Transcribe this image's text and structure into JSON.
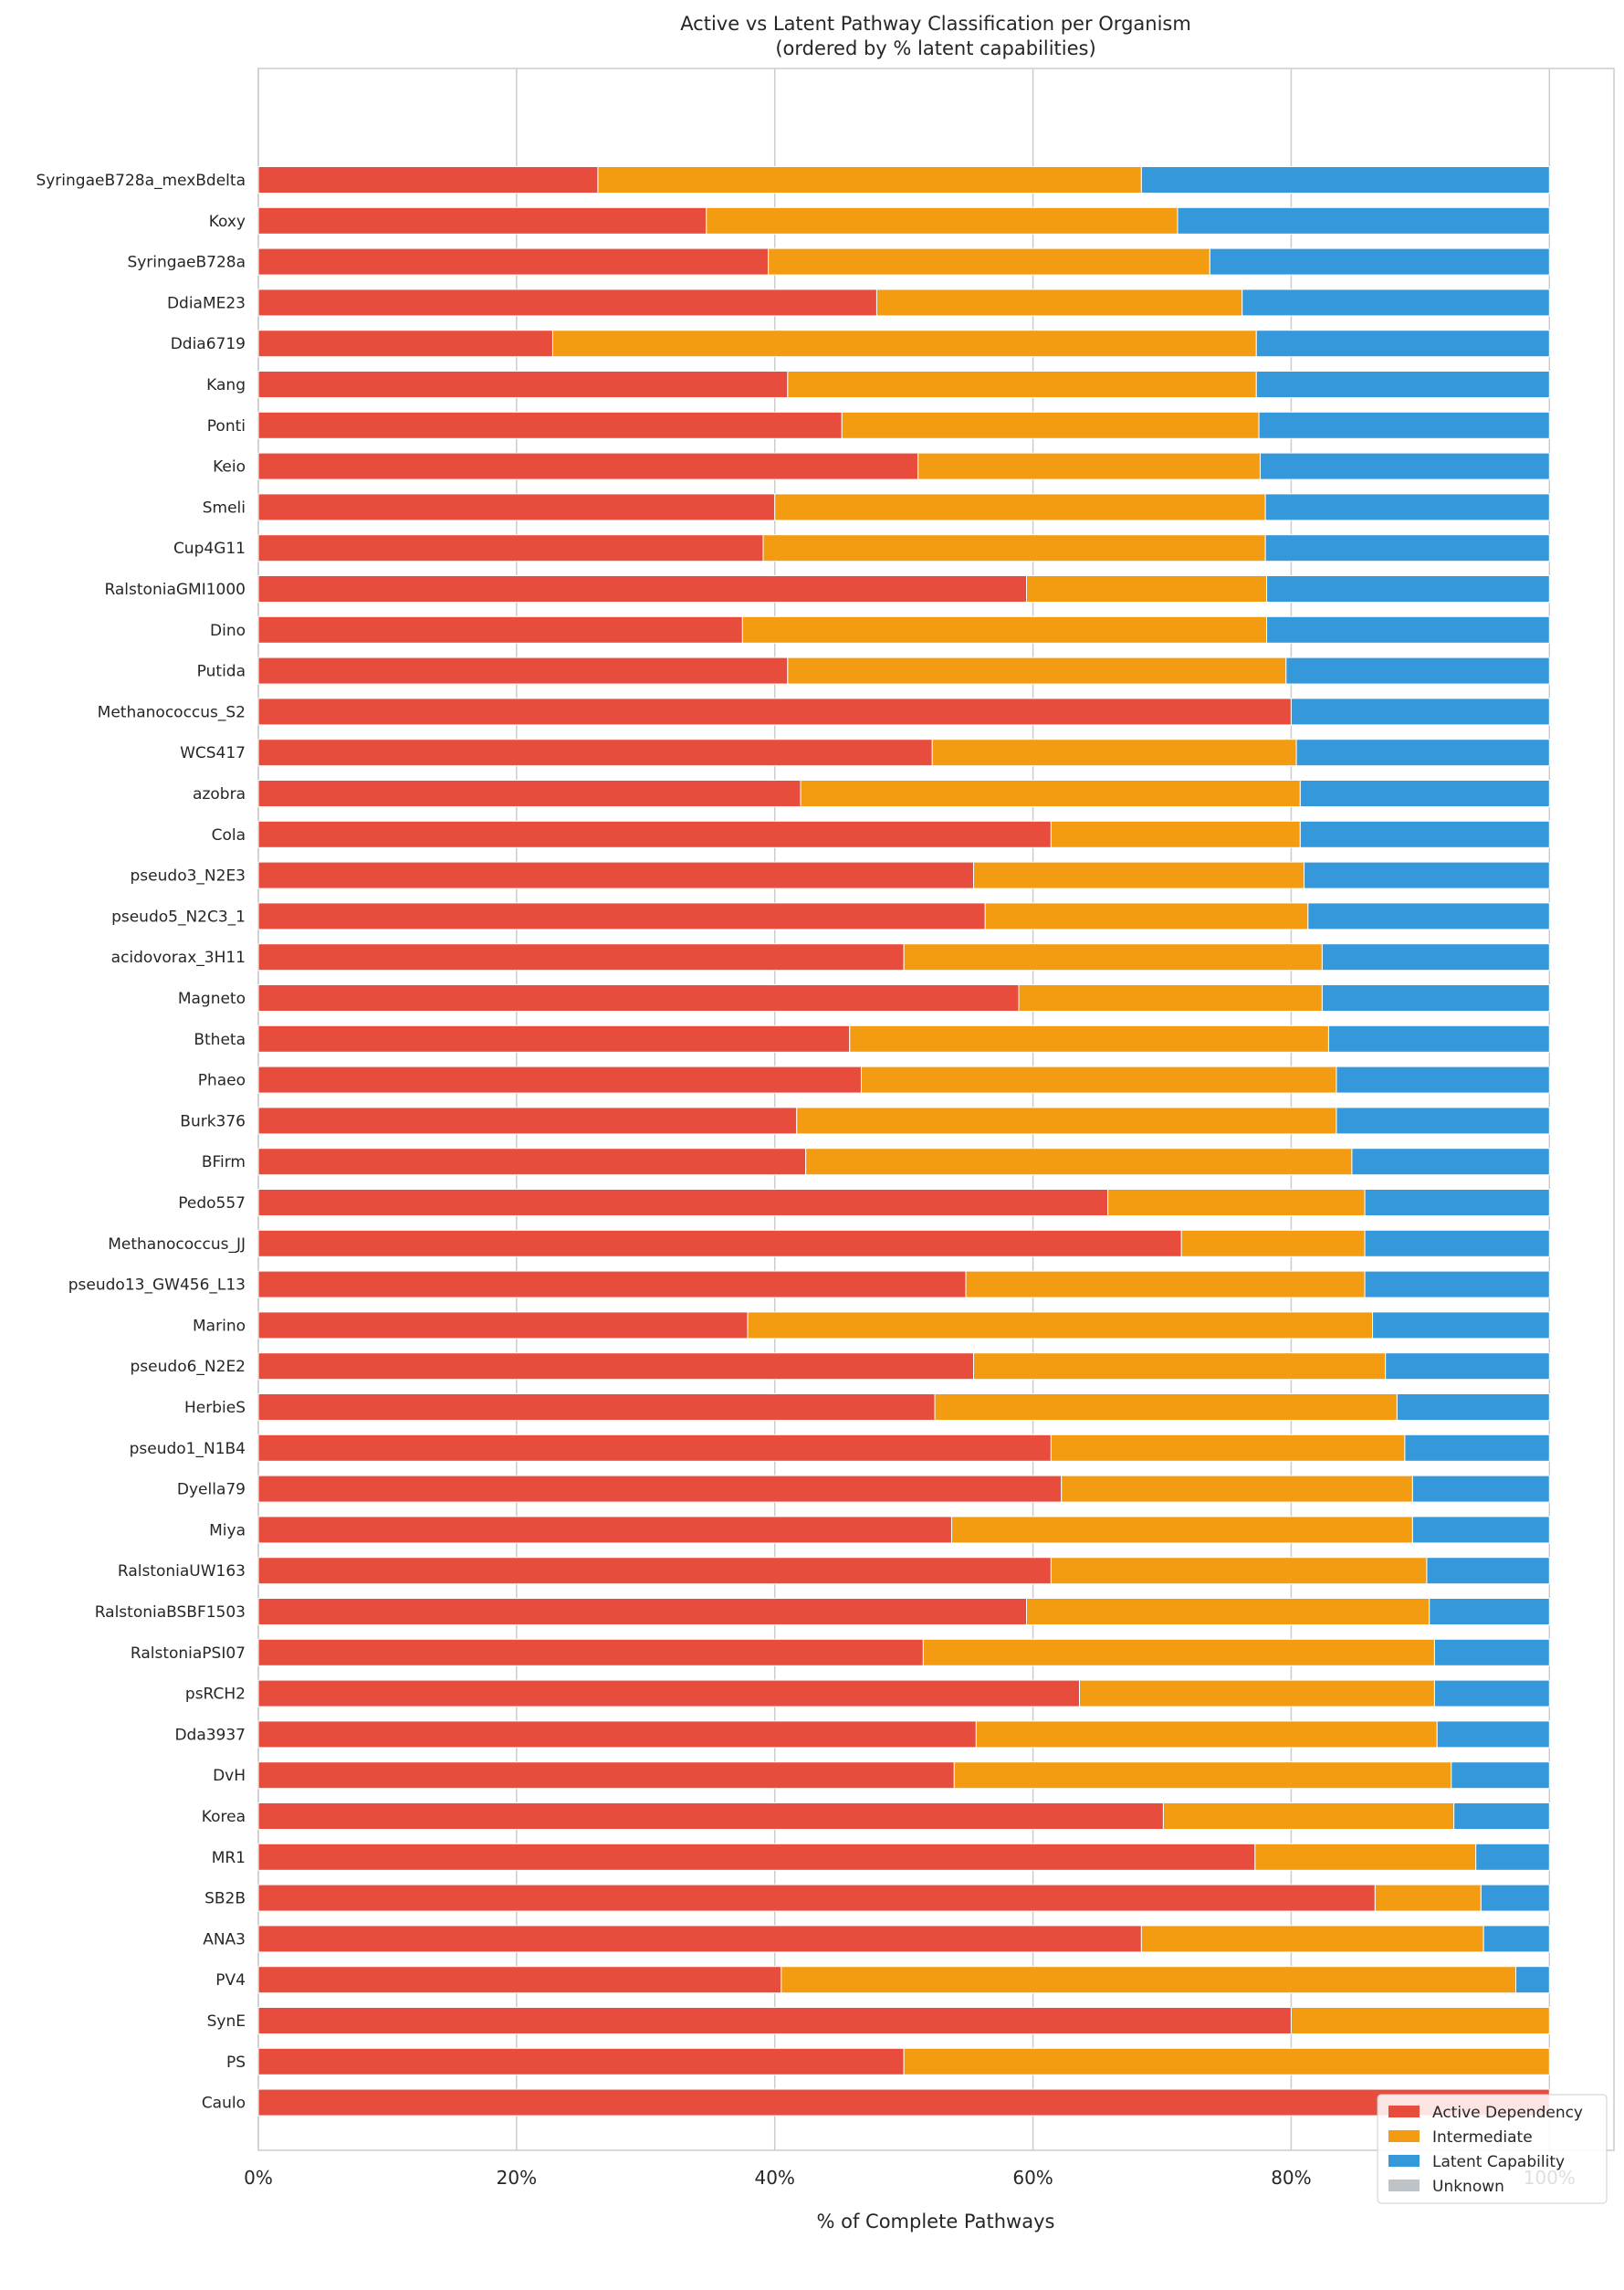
{
  "chart_data": {
    "type": "bar",
    "orientation": "horizontal",
    "stacked": true,
    "title": "Active vs Latent Pathway Classification per Organism",
    "subtitle": "(ordered by % latent capabilities)",
    "xlabel": "% of Complete Pathways",
    "ylabel": "",
    "xlim": [
      0,
      105
    ],
    "xticks": [
      0,
      20,
      40,
      60,
      80,
      100
    ],
    "xtick_labels": [
      "0%",
      "20%",
      "40%",
      "60%",
      "80%",
      "100%"
    ],
    "grid": "vertical",
    "legend_position": "bottom-right",
    "categories": [
      "SyringaeB728a_mexBdelta",
      "Koxy",
      "SyringaeB728a",
      "DdiaME23",
      "Ddia6719",
      "Kang",
      "Ponti",
      "Keio",
      "Smeli",
      "Cup4G11",
      "RalstoniaGMI1000",
      "Dino",
      "Putida",
      "Methanococcus_S2",
      "WCS417",
      "azobra",
      "Cola",
      "pseudo3_N2E3",
      "pseudo5_N2C3_1",
      "acidovorax_3H11",
      "Magneto",
      "Btheta",
      "Phaeo",
      "Burk376",
      "BFirm",
      "Pedo557",
      "Methanococcus_JJ",
      "pseudo13_GW456_L13",
      "Marino",
      "pseudo6_N2E2",
      "HerbieS",
      "pseudo1_N1B4",
      "Dyella79",
      "Miya",
      "RalstoniaUW163",
      "RalstoniaBSBF1503",
      "RalstoniaPSI07",
      "psRCH2",
      "Dda3937",
      "DvH",
      "Korea",
      "MR1",
      "SB2B",
      "ANA3",
      "PV4",
      "SynE",
      "PS",
      "Caulo"
    ],
    "series": [
      {
        "name": "Active Dependency",
        "color": "#e74c3c",
        "values": [
          26.3,
          34.7,
          39.5,
          47.9,
          22.8,
          41.0,
          45.2,
          51.1,
          40.0,
          39.1,
          59.5,
          37.5,
          41.0,
          80.0,
          52.2,
          42.0,
          61.4,
          55.4,
          56.3,
          50.0,
          58.9,
          45.8,
          46.7,
          41.7,
          42.4,
          65.8,
          71.5,
          54.8,
          37.9,
          55.4,
          52.4,
          61.4,
          62.2,
          53.7,
          61.4,
          59.5,
          51.5,
          63.6,
          55.6,
          53.9,
          70.1,
          77.2,
          86.5,
          68.4,
          40.5,
          80.0,
          50.0,
          100.0
        ]
      },
      {
        "name": "Intermediate",
        "color": "#f39c12",
        "values": [
          42.1,
          36.5,
          34.2,
          28.3,
          54.5,
          36.3,
          32.3,
          26.5,
          38.0,
          38.9,
          18.6,
          40.6,
          38.6,
          0.0,
          28.2,
          38.7,
          19.3,
          25.6,
          25.0,
          32.4,
          23.5,
          37.1,
          36.8,
          41.8,
          42.3,
          19.9,
          14.2,
          30.9,
          48.4,
          31.9,
          35.8,
          27.4,
          27.2,
          35.7,
          29.1,
          31.2,
          39.6,
          27.5,
          35.7,
          38.5,
          22.5,
          17.1,
          8.2,
          26.5,
          56.9,
          20.0,
          50.0,
          0.0
        ]
      },
      {
        "name": "Latent Capability",
        "color": "#3498db",
        "values": [
          31.6,
          28.8,
          26.3,
          23.8,
          22.7,
          22.7,
          22.5,
          22.4,
          22.0,
          22.0,
          21.9,
          21.9,
          20.4,
          20.0,
          19.6,
          19.3,
          19.3,
          19.0,
          18.7,
          17.6,
          17.6,
          17.1,
          16.5,
          16.5,
          15.3,
          14.3,
          14.3,
          14.3,
          13.7,
          12.7,
          11.8,
          11.2,
          10.6,
          10.6,
          9.5,
          9.3,
          8.9,
          8.9,
          8.7,
          7.6,
          7.4,
          5.7,
          5.3,
          5.1,
          2.6,
          0.0,
          0.0,
          0.0
        ]
      },
      {
        "name": "Unknown",
        "color": "#bdc3c7",
        "values": [
          0,
          0,
          0,
          0,
          0,
          0,
          0,
          0,
          0,
          0,
          0,
          0,
          0,
          0,
          0,
          0,
          0,
          0,
          0,
          0,
          0,
          0,
          0,
          0,
          0,
          0,
          0,
          0,
          0,
          0,
          0,
          0,
          0,
          0,
          0,
          0,
          0,
          0,
          0,
          0,
          0,
          0,
          0,
          0,
          0,
          0,
          0,
          0
        ]
      }
    ]
  }
}
